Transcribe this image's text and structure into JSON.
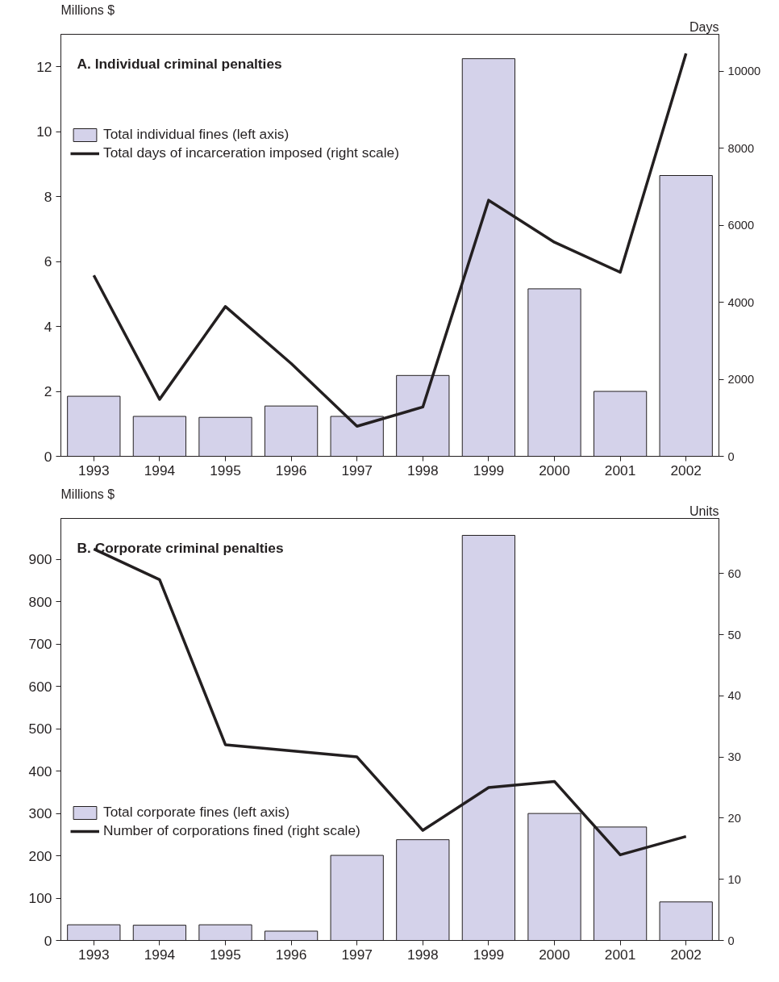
{
  "chart_data": [
    {
      "type": "bar",
      "title": "A. Individual criminal penalties",
      "ylabel": "Millions $",
      "y2label": "Days",
      "categories": [
        "1993",
        "1994",
        "1995",
        "1996",
        "1997",
        "1998",
        "1999",
        "2000",
        "2001",
        "2002"
      ],
      "series": [
        {
          "name": "Total individual fines (left axis)",
          "color": "#d4d2ea",
          "values": [
            1.85,
            1.23,
            1.2,
            1.55,
            1.23,
            2.49,
            12.25,
            5.16,
            2.0,
            8.65
          ]
        },
        {
          "name": "Total days of incarceration imposed (right scale)",
          "type": "line",
          "axis": "y2",
          "color": "#231f20",
          "values": [
            4700,
            1480,
            3890,
            2410,
            780,
            1280,
            6650,
            5560,
            4780,
            10460
          ]
        }
      ],
      "ylim": [
        0,
        13
      ],
      "yticks": [
        0,
        2,
        4,
        6,
        8,
        10,
        12
      ],
      "y2lim": [
        0,
        10960
      ],
      "y2ticks": [
        0,
        2000,
        4000,
        6000,
        8000,
        10000
      ],
      "legend": "top left",
      "grid": false
    },
    {
      "type": "bar",
      "title": "B. Corporate criminal penalties",
      "ylabel": "Millions $",
      "y2label": "Units",
      "categories": [
        "1993",
        "1994",
        "1995",
        "1996",
        "1997",
        "1998",
        "1999",
        "2000",
        "2001",
        "2002"
      ],
      "series": [
        {
          "name": "Total corporate fines (left axis)",
          "color": "#d4d2ea",
          "values": [
            37,
            36,
            37,
            22,
            201,
            238,
            957,
            300,
            268,
            91
          ]
        },
        {
          "name": "Number of corporations fined (right scale)",
          "type": "line",
          "axis": "y2",
          "color": "#231f20",
          "values": [
            64,
            59,
            32,
            31,
            30,
            18,
            25,
            26,
            14,
            17
          ]
        }
      ],
      "ylim": [
        0,
        997
      ],
      "yticks": [
        0,
        100,
        200,
        300,
        400,
        500,
        600,
        700,
        800,
        900
      ],
      "y2lim": [
        0,
        69
      ],
      "y2ticks": [
        0,
        10,
        20,
        30,
        40,
        50,
        60
      ],
      "legend": "left",
      "grid": false
    }
  ]
}
